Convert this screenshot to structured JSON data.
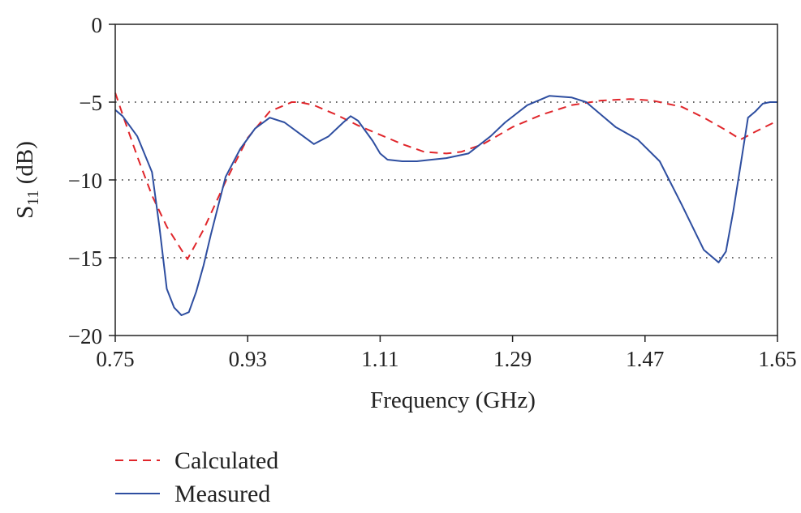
{
  "chart_data": {
    "type": "line",
    "xlabel": "Frequency (GHz)",
    "ylabel": {
      "base": "S",
      "sub": "11",
      "unit": " (dB)"
    },
    "xlim": [
      0.75,
      1.65
    ],
    "ylim": [
      -20,
      0
    ],
    "xticks": [
      0.75,
      0.93,
      1.11,
      1.29,
      1.47,
      1.65
    ],
    "xtick_labels": [
      "0.75",
      "0.93",
      "1.11",
      "1.29",
      "1.47",
      "1.65"
    ],
    "yticks": [
      0,
      -5,
      -10,
      -15,
      -20
    ],
    "ytick_labels": [
      "0",
      "−5",
      "−10",
      "−15",
      "−20"
    ],
    "gridlines_y": [
      -5,
      -10,
      -15
    ],
    "grid_style": "dotted",
    "legend_position": "below",
    "series": [
      {
        "name": "Calculated",
        "color": "#e0262b",
        "style": "dashed",
        "x": [
          0.75,
          0.76,
          0.78,
          0.8,
          0.82,
          0.848,
          0.87,
          0.9,
          0.93,
          0.96,
          0.99,
          1.0,
          1.02,
          1.05,
          1.08,
          1.11,
          1.14,
          1.17,
          1.2,
          1.22,
          1.25,
          1.29,
          1.33,
          1.37,
          1.41,
          1.45,
          1.48,
          1.52,
          1.55,
          1.58,
          1.6,
          1.62,
          1.65
        ],
        "values": [
          -4.4,
          -5.8,
          -8.5,
          -11.0,
          -13.0,
          -15.1,
          -13.2,
          -10.1,
          -7.3,
          -5.6,
          -5.0,
          -5.0,
          -5.2,
          -5.8,
          -6.5,
          -7.1,
          -7.7,
          -8.2,
          -8.3,
          -8.2,
          -7.7,
          -6.6,
          -5.8,
          -5.2,
          -4.9,
          -4.8,
          -4.9,
          -5.3,
          -6.0,
          -6.8,
          -7.4,
          -6.9,
          -6.2
        ]
      },
      {
        "name": "Measured",
        "color": "#2e4ea0",
        "style": "solid",
        "x": [
          0.75,
          0.76,
          0.78,
          0.8,
          0.81,
          0.82,
          0.83,
          0.84,
          0.85,
          0.86,
          0.87,
          0.88,
          0.9,
          0.92,
          0.94,
          0.96,
          0.98,
          1.0,
          1.02,
          1.04,
          1.06,
          1.07,
          1.08,
          1.1,
          1.11,
          1.12,
          1.14,
          1.16,
          1.18,
          1.2,
          1.23,
          1.26,
          1.28,
          1.31,
          1.34,
          1.37,
          1.39,
          1.41,
          1.43,
          1.46,
          1.49,
          1.52,
          1.55,
          1.57,
          1.58,
          1.59,
          1.6,
          1.605,
          1.61,
          1.62,
          1.63,
          1.64,
          1.65
        ],
        "values": [
          -5.5,
          -5.9,
          -7.2,
          -9.5,
          -13.0,
          -17.0,
          -18.2,
          -18.7,
          -18.5,
          -17.2,
          -15.5,
          -13.5,
          -9.8,
          -8.0,
          -6.7,
          -6.0,
          -6.3,
          -7.0,
          -7.7,
          -7.2,
          -6.3,
          -5.9,
          -6.2,
          -7.5,
          -8.3,
          -8.7,
          -8.8,
          -8.8,
          -8.7,
          -8.6,
          -8.3,
          -7.2,
          -6.3,
          -5.2,
          -4.6,
          -4.7,
          -5.0,
          -5.8,
          -6.6,
          -7.4,
          -8.8,
          -11.6,
          -14.5,
          -15.3,
          -14.6,
          -12.0,
          -9.0,
          -7.5,
          -6.0,
          -5.6,
          -5.1,
          -5.0,
          -5.0
        ]
      }
    ]
  }
}
